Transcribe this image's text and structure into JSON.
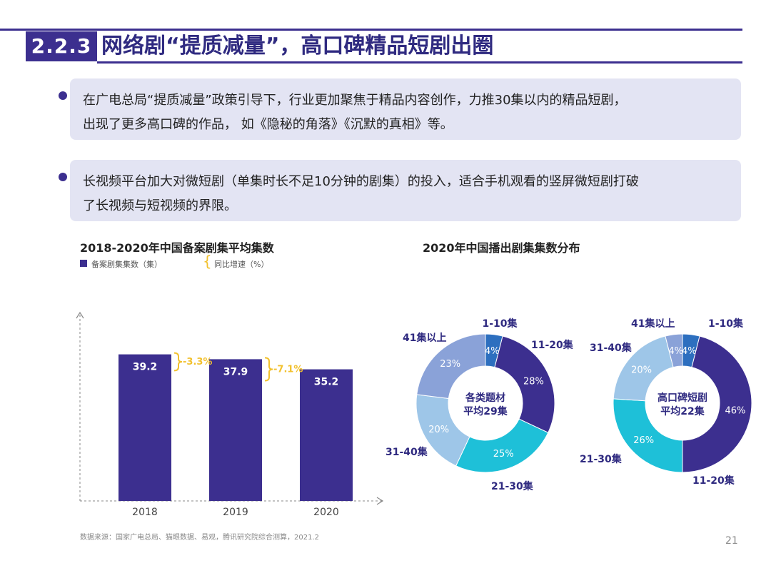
{
  "header": {
    "section_number": "2.2.3",
    "title": "网络剧“提质减量”，高口碑精品短剧出圈"
  },
  "bullets": [
    {
      "line1": "在广电总局“提质减量”政策引导下，行业更加聚焦于精品内容创作，力推30集以内的精品短剧，",
      "line2": "出现了更多高口碑的作品， 如《隐秘的角落》《沉默的真相》等。"
    },
    {
      "line1": "长视频平台加大对微短剧（单集时长不足10分钟的剧集）的投入，适合手机观看的竖屏微短剧打破",
      "line2": "了长视频与短视频的界限。"
    }
  ],
  "left_chart": {
    "title": "2018-2020年中国备案剧集平均集数",
    "legend_bar": "备案剧集集数（集）",
    "legend_growth": "同比增速（%）"
  },
  "right_chart": {
    "title": "2020年中国播出剧集集数分布"
  },
  "chart_data": [
    {
      "type": "bar",
      "title": "2018-2020年中国备案剧集平均集数",
      "categories": [
        "2018",
        "2019",
        "2020"
      ],
      "series": [
        {
          "name": "备案剧集集数（集）",
          "values": [
            39.2,
            37.9,
            35.2
          ]
        }
      ],
      "growth": {
        "name": "同比增速（%）",
        "labels": [
          "-3.3%",
          "-7.1%"
        ]
      },
      "ylim": [
        0,
        50
      ],
      "colors": {
        "bar": "#3c2f8f",
        "growth": "#f2c12e"
      }
    },
    {
      "type": "pie",
      "title": "2020年中国播出剧集集数分布",
      "center_label": [
        "各类题材",
        "平均29集"
      ],
      "slices": [
        {
          "label": "1-10集",
          "value": 4,
          "text": "4%",
          "color": "#3c2f8f"
        },
        {
          "label": "11-20集",
          "value": 28,
          "text": "28%",
          "color": "#3c2f8f"
        },
        {
          "label": "21-30集",
          "value": 25,
          "text": "25%",
          "color": "#1ec0d8"
        },
        {
          "label": "31-40集",
          "value": 20,
          "text": "20%",
          "color": "#9ec6e8"
        },
        {
          "label": "41集以上",
          "value": 23,
          "text": "23%",
          "color": "#8aa2d8"
        }
      ]
    },
    {
      "type": "pie",
      "title": "2020年中国播出剧集集数分布",
      "center_label": [
        "高口碑短剧",
        "平均22集"
      ],
      "slices": [
        {
          "label": "1-10集",
          "value": 4,
          "text": "4%",
          "color": "#3c2f8f"
        },
        {
          "label": "11-20集",
          "value": 46,
          "text": "46%",
          "color": "#3c2f8f"
        },
        {
          "label": "21-30集",
          "value": 26,
          "text": "26%",
          "color": "#1ec0d8"
        },
        {
          "label": "31-40集",
          "value": 20,
          "text": "20%",
          "color": "#9ec6e8"
        },
        {
          "label": "41集以上",
          "value": 4,
          "text": "4%",
          "color": "#8aa2d8"
        }
      ]
    }
  ],
  "footer": {
    "source": "数据来源：国家广电总局、猫眼数据、易观，腾讯研究院综合测算，2021.2",
    "page_number": "21"
  }
}
